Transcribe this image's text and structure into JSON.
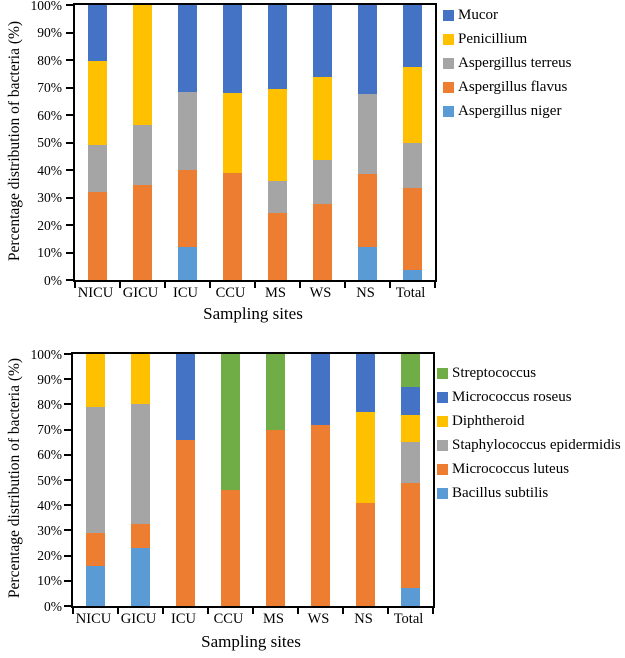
{
  "chart_data": [
    {
      "type": "bar",
      "variant": "stacked-100-percent",
      "title": "",
      "xlabel": "Sampling sites",
      "ylabel": "Percentage distribution of bacteria (%)",
      "ylim": [
        0,
        100
      ],
      "grid": false,
      "legend_position": "right",
      "yticks": [
        "0%",
        "10%",
        "20%",
        "30%",
        "40%",
        "50%",
        "60%",
        "70%",
        "80%",
        "90%",
        "100%"
      ],
      "categories": [
        "NICU",
        "GICU",
        "ICU",
        "CCU",
        "MS",
        "WS",
        "NS",
        "Total"
      ],
      "series": [
        {
          "name": "Aspergillus niger",
          "color": "#5B9BD5",
          "values": [
            0,
            0,
            12,
            0,
            0,
            0,
            12,
            3.5
          ]
        },
        {
          "name": "Aspergillus flavus",
          "color": "#ED7D31",
          "values": [
            32,
            34.5,
            28,
            39,
            24.5,
            27.5,
            26.5,
            30
          ]
        },
        {
          "name": "Aspergillus terreus",
          "color": "#A5A5A5",
          "values": [
            17,
            22,
            28.5,
            0,
            11.5,
            16,
            29,
            16.5
          ]
        },
        {
          "name": "Penicillium",
          "color": "#FFC000",
          "values": [
            30.5,
            43.5,
            0,
            29,
            33.5,
            30.5,
            0,
            27.5
          ]
        },
        {
          "name": "Mucor",
          "color": "#4472C4",
          "values": [
            20.5,
            0,
            31.5,
            32,
            30.5,
            26,
            32.5,
            22.5
          ]
        }
      ],
      "legend": [
        "Mucor",
        "Penicillium",
        "Aspergillus terreus",
        "Aspergillus flavus",
        "Aspergillus niger"
      ]
    },
    {
      "type": "bar",
      "variant": "stacked-100-percent",
      "title": "",
      "xlabel": "Sampling sites",
      "ylabel": "Percentage distribution of bacteria (%)",
      "ylim": [
        0,
        100
      ],
      "grid": false,
      "legend_position": "right",
      "yticks": [
        "0%",
        "10%",
        "20%",
        "30%",
        "40%",
        "50%",
        "60%",
        "70%",
        "80%",
        "90%",
        "100%"
      ],
      "categories": [
        "NICU",
        "GICU",
        "ICU",
        "CCU",
        "MS",
        "WS",
        "NS",
        "Total"
      ],
      "series": [
        {
          "name": "Bacillus subtilis",
          "color": "#5B9BD5",
          "values": [
            16,
            23,
            0,
            0,
            0,
            0,
            0,
            7
          ]
        },
        {
          "name": "Micrococcus luteus",
          "color": "#ED7D31",
          "values": [
            13,
            9.5,
            66,
            46,
            70,
            72,
            41,
            42
          ]
        },
        {
          "name": "Staphylococcus epidermidis",
          "color": "#A5A5A5",
          "values": [
            50,
            47.5,
            0,
            0,
            0,
            0,
            0,
            16
          ]
        },
        {
          "name": "Diphtheroid",
          "color": "#FFC000",
          "values": [
            21,
            20,
            0,
            0,
            0,
            0,
            36,
            11
          ]
        },
        {
          "name": "Micrococcus roseus",
          "color": "#4472C4",
          "values": [
            0,
            0,
            34,
            0,
            0,
            28,
            23,
            11
          ]
        },
        {
          "name": "Streptococcus",
          "color": "#70AD47",
          "values": [
            0,
            0,
            0,
            54,
            30,
            0,
            0,
            13
          ]
        }
      ],
      "legend": [
        "Streptococcus",
        "Micrococcus roseus",
        "Diphtheroid",
        "Staphylococcus epidermidis",
        "Micrococcus luteus",
        "Bacillus subtilis"
      ]
    }
  ],
  "palette": {
    "blue": "#4472C4",
    "orange": "#ED7D31",
    "gray": "#A5A5A5",
    "yellow": "#FFC000",
    "light_blue": "#5B9BD5",
    "green": "#70AD47",
    "axis": "#000000"
  }
}
